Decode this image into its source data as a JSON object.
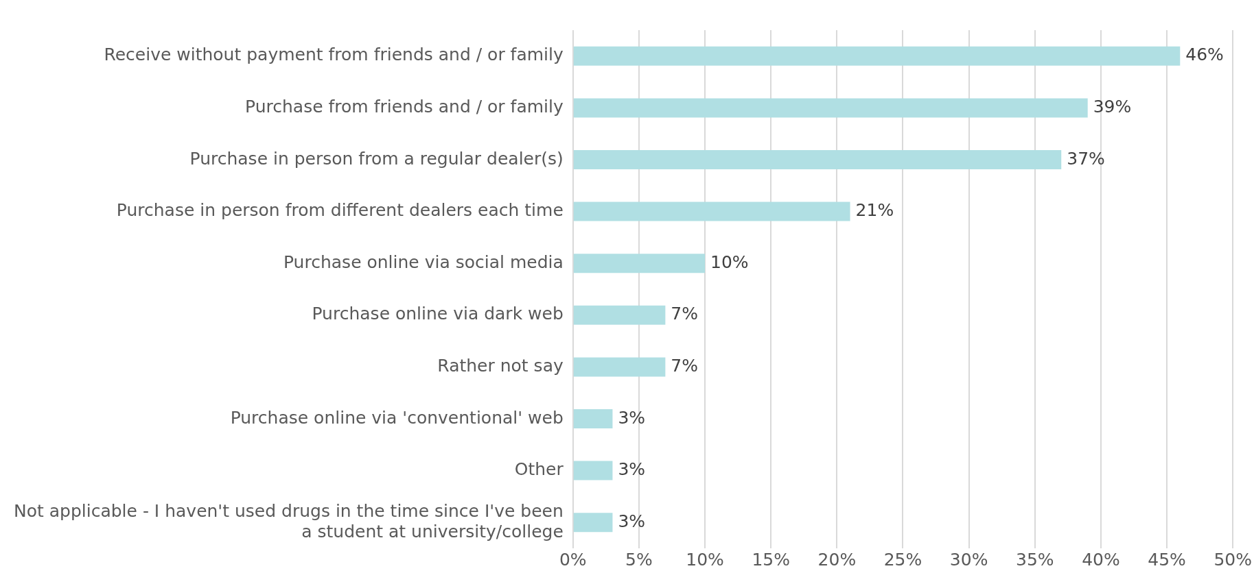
{
  "chart_data": {
    "type": "bar",
    "orientation": "horizontal",
    "categories": [
      "Receive without payment from friends and / or family",
      "Purchase from friends and / or family",
      "Purchase in person from a regular dealer(s)",
      "Purchase in person from different dealers each time",
      "Purchase online via social media",
      "Purchase online via dark web",
      "Rather not say",
      "Purchase online via 'conventional' web",
      "Other",
      "Not applicable - I haven't used drugs in the time since I've been a student at university/college"
    ],
    "values": [
      46,
      39,
      37,
      21,
      10,
      7,
      7,
      3,
      3,
      3
    ],
    "value_labels": [
      "46%",
      "39%",
      "37%",
      "21%",
      "10%",
      "7%",
      "7%",
      "3%",
      "3%",
      "3%"
    ],
    "color": "#b0dfe3",
    "xlim": [
      0,
      50
    ],
    "xticks": [
      {
        "value": 0,
        "label": "0%"
      },
      {
        "value": 5,
        "label": "5%"
      },
      {
        "value": 10,
        "label": "10%"
      },
      {
        "value": 15,
        "label": "15%"
      },
      {
        "value": 20,
        "label": "20%"
      },
      {
        "value": 25,
        "label": "25%"
      },
      {
        "value": 30,
        "label": "30%"
      },
      {
        "value": 35,
        "label": "35%"
      },
      {
        "value": 40,
        "label": "40%"
      },
      {
        "value": 45,
        "label": "45%"
      },
      {
        "value": 50,
        "label": "50%"
      }
    ],
    "grid": "x",
    "legend": false
  }
}
